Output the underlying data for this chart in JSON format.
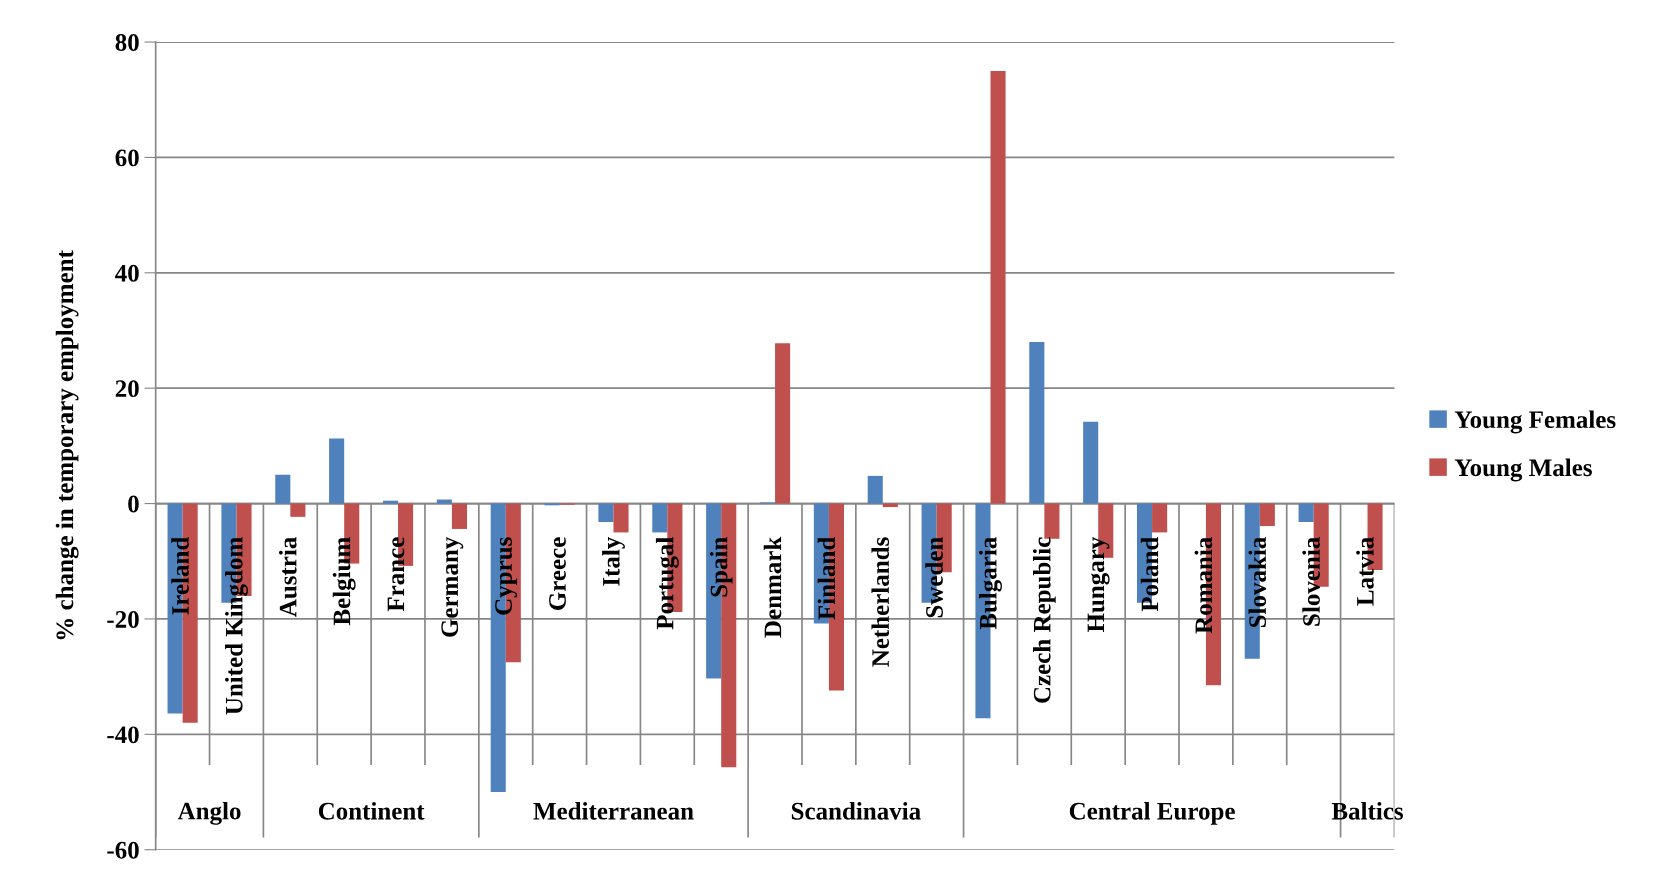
{
  "chart_data": {
    "type": "bar",
    "ylabel": "% change in temporary employment",
    "categories": [
      "Ireland",
      "United Kingdom",
      "Austria",
      "Belgium",
      "France",
      "Germany",
      "Cyprus",
      "Greece",
      "Italy",
      "Portugal",
      "Spain",
      "Denmark",
      "Finland",
      "Netherlands",
      "Sweden",
      "Bulgaria",
      "Czech Republic",
      "Hungary",
      "Poland",
      "Romania",
      "Slovakia",
      "Slovenia",
      "Latvia"
    ],
    "series": [
      {
        "name": "Young Females",
        "color": "#4f81bd",
        "values": [
          -36.4,
          -17.2,
          5,
          11.3,
          0.5,
          0.7,
          -50,
          -0.3,
          -3.2,
          -5,
          -30.3,
          0.2,
          -20.8,
          4.8,
          -17.2,
          -37.2,
          28,
          14.2,
          -17.2,
          null,
          -26.9,
          -3.2,
          null
        ]
      },
      {
        "name": "Young Males",
        "color": "#c0504d",
        "values": [
          -38,
          -16,
          -2.3,
          -10.4,
          -10.8,
          -4.4,
          -27.5,
          -0.2,
          -5,
          -18.8,
          -45.7,
          27.8,
          -32.4,
          -0.6,
          -11.9,
          75,
          -6.1,
          -9.4,
          -5,
          -31.5,
          -3.9,
          -14.4,
          -11.5
        ]
      }
    ],
    "ylim": [
      -60,
      80
    ],
    "yticks": [
      -60,
      -40,
      -20,
      0,
      20,
      40,
      60,
      80
    ],
    "grid": "y",
    "legend": "right",
    "annotations": [
      "Anglo",
      "Continent",
      "Mediterranean",
      "Scandinavia",
      "Central Europe",
      "Baltics"
    ]
  }
}
